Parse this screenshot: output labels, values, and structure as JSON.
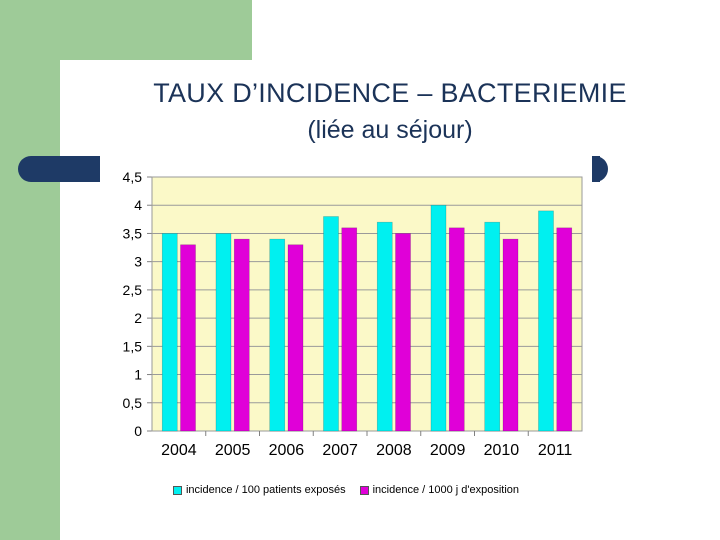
{
  "slide": {
    "title_line1": "TAUX D’INCIDENCE – BACTERIEMIE",
    "title_line2": "(liée au séjour)"
  },
  "colors": {
    "series1": "#00f0f0",
    "series2": "#e000d8",
    "plot_bg": "#fbf9c8",
    "accent_green": "#9ecb98",
    "accent_navy": "#1e3a66"
  },
  "chart_data": {
    "type": "bar",
    "categories": [
      "2004",
      "2005",
      "2006",
      "2007",
      "2008",
      "2009",
      "2010",
      "2011"
    ],
    "series": [
      {
        "name": "incidence / 100 patients exposés",
        "values": [
          3.5,
          3.5,
          3.4,
          3.8,
          3.7,
          4.0,
          3.7,
          3.9
        ]
      },
      {
        "name": "incidence / 1000 j d'exposition",
        "values": [
          3.3,
          3.4,
          3.3,
          3.6,
          3.5,
          3.6,
          3.4,
          3.6
        ]
      }
    ],
    "ylim": [
      0,
      4.5
    ],
    "yticks": [
      "0",
      "0,5",
      "1",
      "1,5",
      "2",
      "2,5",
      "3",
      "3,5",
      "4",
      "4,5"
    ],
    "legend_position": "bottom",
    "grid": "horizontal"
  }
}
